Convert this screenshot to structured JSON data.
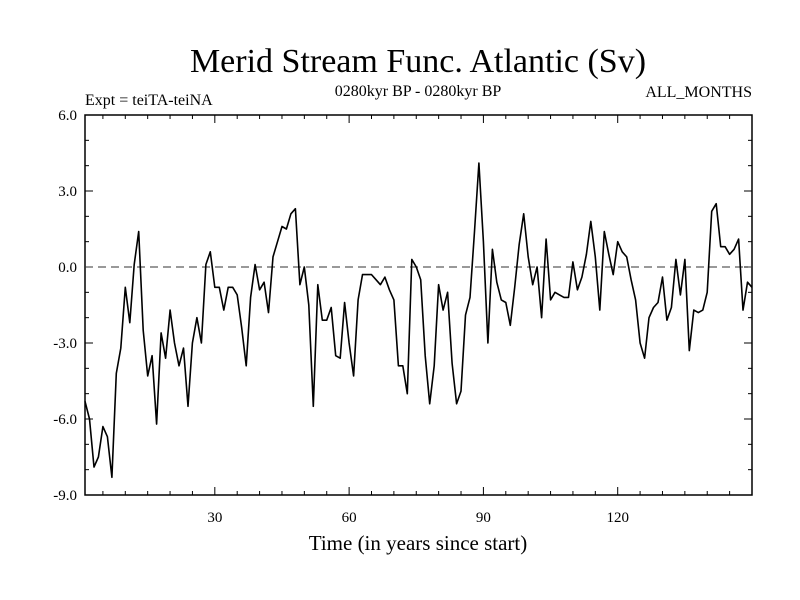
{
  "chart_data": {
    "type": "line",
    "title": "Merid Stream Func. Atlantic (Sv)",
    "subtitle_left": "Expt = teiTA-teiNA",
    "subtitle_center": "0280kyr BP - 0280kyr BP",
    "subtitle_right": "ALL_MONTHS",
    "xlabel": "Time (in years since start)",
    "ylabel": "",
    "xlim": [
      1,
      150
    ],
    "ylim": [
      -9,
      6
    ],
    "xticks": [
      30,
      60,
      90,
      120
    ],
    "yticks": [
      -9,
      -6,
      -3,
      0,
      3,
      6
    ],
    "ytick_labels": [
      "-9.0",
      "-6.0",
      "-3.0",
      "0.0",
      "3.0",
      "6.0"
    ],
    "zero_line": 0,
    "series": [
      {
        "name": "teiTA-teiNA",
        "x": [
          1,
          2,
          3,
          4,
          5,
          6,
          7,
          8,
          9,
          10,
          11,
          12,
          13,
          14,
          15,
          16,
          17,
          18,
          19,
          20,
          21,
          22,
          23,
          24,
          25,
          26,
          27,
          28,
          29,
          30,
          31,
          32,
          33,
          34,
          35,
          36,
          37,
          38,
          39,
          40,
          41,
          42,
          43,
          44,
          45,
          46,
          47,
          48,
          49,
          50,
          51,
          52,
          53,
          54,
          55,
          56,
          57,
          58,
          59,
          60,
          61,
          62,
          63,
          64,
          65,
          66,
          67,
          68,
          69,
          70,
          71,
          72,
          73,
          74,
          75,
          76,
          77,
          78,
          79,
          80,
          81,
          82,
          83,
          84,
          85,
          86,
          87,
          88,
          89,
          90,
          91,
          92,
          93,
          94,
          95,
          96,
          97,
          98,
          99,
          100,
          101,
          102,
          103,
          104,
          105,
          106,
          107,
          108,
          109,
          110,
          111,
          112,
          113,
          114,
          115,
          116,
          117,
          118,
          119,
          120,
          121,
          122,
          123,
          124,
          125,
          126,
          127,
          128,
          129,
          130,
          131,
          132,
          133,
          134,
          135,
          136,
          137,
          138,
          139,
          140,
          141,
          142,
          143,
          144,
          145,
          146,
          147,
          148,
          149,
          150
        ],
        "values": [
          -5.3,
          -6.0,
          -7.9,
          -7.5,
          -6.3,
          -6.7,
          -8.3,
          -4.2,
          -3.2,
          -0.8,
          -2.2,
          0.1,
          1.4,
          -2.5,
          -4.3,
          -3.5,
          -6.2,
          -2.6,
          -3.6,
          -1.7,
          -3.0,
          -3.9,
          -3.2,
          -5.5,
          -3.0,
          -2.0,
          -3.0,
          0.1,
          0.6,
          -0.8,
          -0.8,
          -1.7,
          -0.8,
          -0.8,
          -1.1,
          -2.4,
          -3.9,
          -1.2,
          0.1,
          -0.9,
          -0.6,
          -1.8,
          0.4,
          1.0,
          1.6,
          1.5,
          2.1,
          2.3,
          -0.7,
          0.0,
          -1.5,
          -5.5,
          -0.7,
          -2.1,
          -2.1,
          -1.6,
          -3.5,
          -3.6,
          -1.4,
          -3.0,
          -4.3,
          -1.3,
          -0.3,
          -0.3,
          -0.3,
          -0.5,
          -0.7,
          -0.4,
          -0.9,
          -1.3,
          -3.9,
          -3.9,
          -5.0,
          0.3,
          0.0,
          -0.5,
          -3.5,
          -5.4,
          -3.9,
          -0.7,
          -1.7,
          -1.0,
          -3.8,
          -5.4,
          -4.9,
          -1.9,
          -1.2,
          1.4,
          4.1,
          1.0,
          -3.0,
          0.7,
          -0.6,
          -1.3,
          -1.4,
          -2.3,
          -0.8,
          0.9,
          2.1,
          0.4,
          -0.7,
          0.0,
          -2.0,
          1.1,
          -1.3,
          -1.0,
          -1.1,
          -1.2,
          -1.2,
          0.2,
          -0.9,
          -0.4,
          0.5,
          1.8,
          0.4,
          -1.7,
          1.4,
          0.5,
          -0.3,
          1.0,
          0.6,
          0.4,
          -0.5,
          -1.3,
          -3.0,
          -3.6,
          -2.0,
          -1.6,
          -1.4,
          -0.4,
          -2.1,
          -1.6,
          0.3,
          -1.1,
          0.3,
          -3.3,
          -1.7,
          -1.8,
          -1.7,
          -1.0,
          2.2,
          2.5,
          0.8,
          0.8,
          0.5,
          0.7,
          1.1,
          -1.7,
          -0.6,
          -0.8
        ]
      }
    ]
  }
}
